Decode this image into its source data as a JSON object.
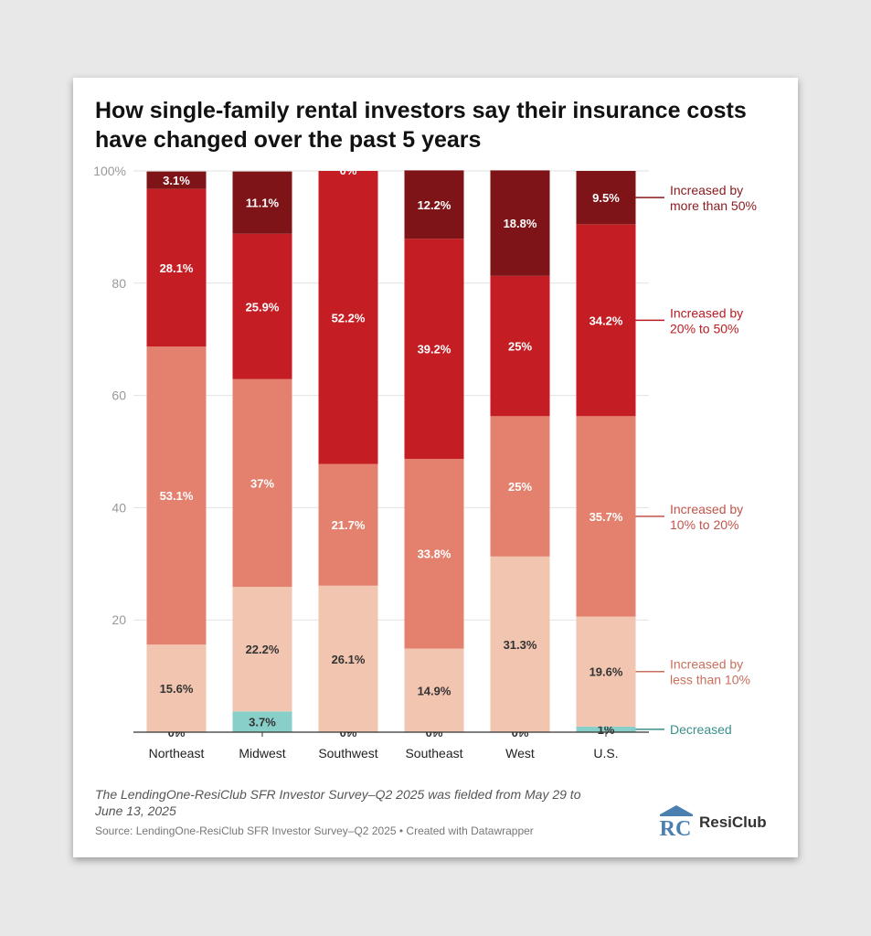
{
  "title": "How single-family rental investors say their insurance costs have changed over the past 5 years",
  "note": "The LendingOne-ResiClub SFR Investor Survey–Q2 2025 was fielded from May 29 to June 13, 2025",
  "source": "Source: LendingOne-ResiClub SFR Investor Survey–Q2 2025",
  "credit": "Created with Datawrapper",
  "logo": {
    "mark": "RC",
    "text": "ResiClub"
  },
  "chart_data": {
    "type": "bar",
    "stacked": true,
    "categories": [
      "Northeast",
      "Midwest",
      "Southwest",
      "Southeast",
      "West",
      "U.S."
    ],
    "ylim": [
      0,
      100
    ],
    "yticks": [
      0,
      20,
      40,
      60,
      80,
      100
    ],
    "ytick_labels": [
      "",
      "20",
      "40",
      "60",
      "80",
      "100%"
    ],
    "grid": true,
    "legend_placement": "right, inline labels",
    "series": [
      {
        "name": "Decreased",
        "color": "#88cfc9",
        "label_color": "#3a8f8a",
        "values": [
          0,
          3.7,
          0,
          0,
          0,
          1
        ],
        "labels": [
          "0%",
          "3.7%",
          "0%",
          "0%",
          "0%",
          "1%"
        ]
      },
      {
        "name": "Increased by less than 10%",
        "color": "#f2c5b0",
        "label_color": "#c96f5e",
        "values": [
          15.6,
          22.2,
          26.1,
          14.9,
          31.3,
          19.6
        ],
        "labels": [
          "15.6%",
          "22.2%",
          "26.1%",
          "14.9%",
          "31.3%",
          "19.6%"
        ]
      },
      {
        "name": "Increased by 10% to 20%",
        "color": "#e4806e",
        "label_color": "#c0544a",
        "values": [
          53.1,
          37,
          21.7,
          33.8,
          25,
          35.7
        ],
        "labels": [
          "53.1%",
          "37%",
          "21.7%",
          "33.8%",
          "25%",
          "35.7%"
        ]
      },
      {
        "name": "Increased by 20% to 50%",
        "color": "#c41e24",
        "label_color": "#b81c22",
        "values": [
          28.1,
          25.9,
          52.2,
          39.2,
          25,
          34.2
        ],
        "labels": [
          "28.1%",
          "25.9%",
          "52.2%",
          "39.2%",
          "25%",
          "34.2%"
        ]
      },
      {
        "name": "Increased by more than 50%",
        "color": "#7e1418",
        "label_color": "#8a1a1e",
        "values": [
          3.1,
          11.1,
          0,
          12.2,
          18.8,
          9.5
        ],
        "labels": [
          "3.1%",
          "11.1%",
          "0%",
          "12.2%",
          "18.8%",
          "9.5%"
        ]
      }
    ],
    "legend_lines": [
      [
        "Decreased"
      ],
      [
        "Increased by",
        "less than 10%"
      ],
      [
        "Increased by",
        "10% to 20%"
      ],
      [
        "Increased by",
        "20% to 50%"
      ],
      [
        "Increased by",
        "more than 50%"
      ]
    ]
  }
}
